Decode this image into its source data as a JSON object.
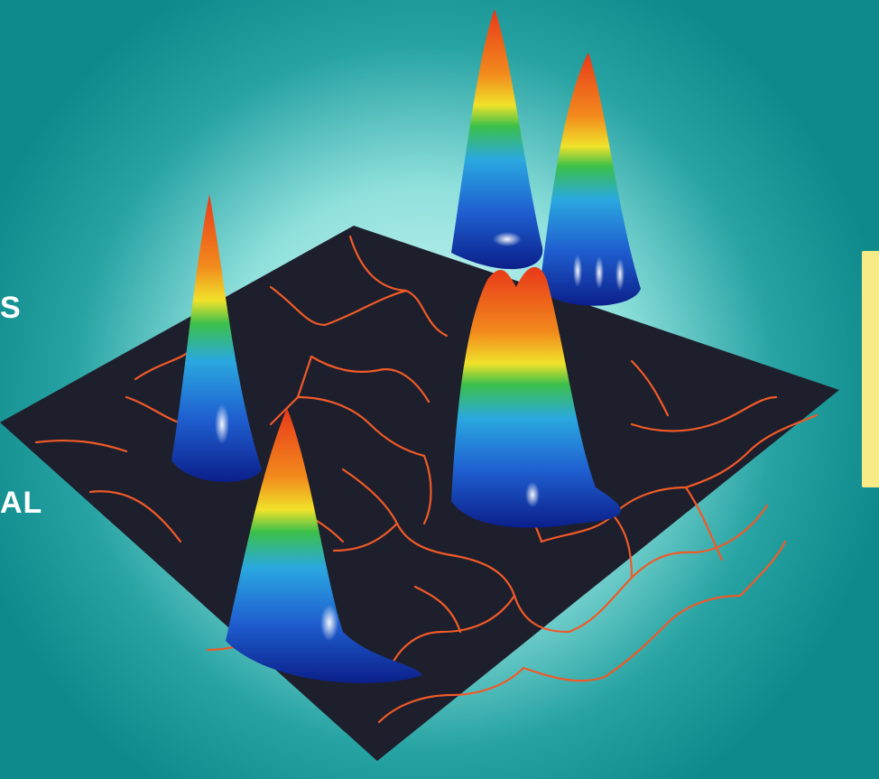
{
  "side_text": {
    "fragment_top": "S",
    "fragment_bottom": "AL"
  },
  "colors": {
    "background": "#0e8a8c",
    "glow": "#bff5f2",
    "surface": "#1e1f2c",
    "boundary_lines": "#f05a28",
    "card": "#f6eb86",
    "peak_colormap": [
      "#0b1f8a",
      "#1f5fd0",
      "#2aa8e0",
      "#3cc04a",
      "#f0e22a",
      "#f28a1c",
      "#e8381a"
    ]
  },
  "scene": {
    "description_icon": "3d-surface-peaks-icon",
    "peak_count": 5
  }
}
